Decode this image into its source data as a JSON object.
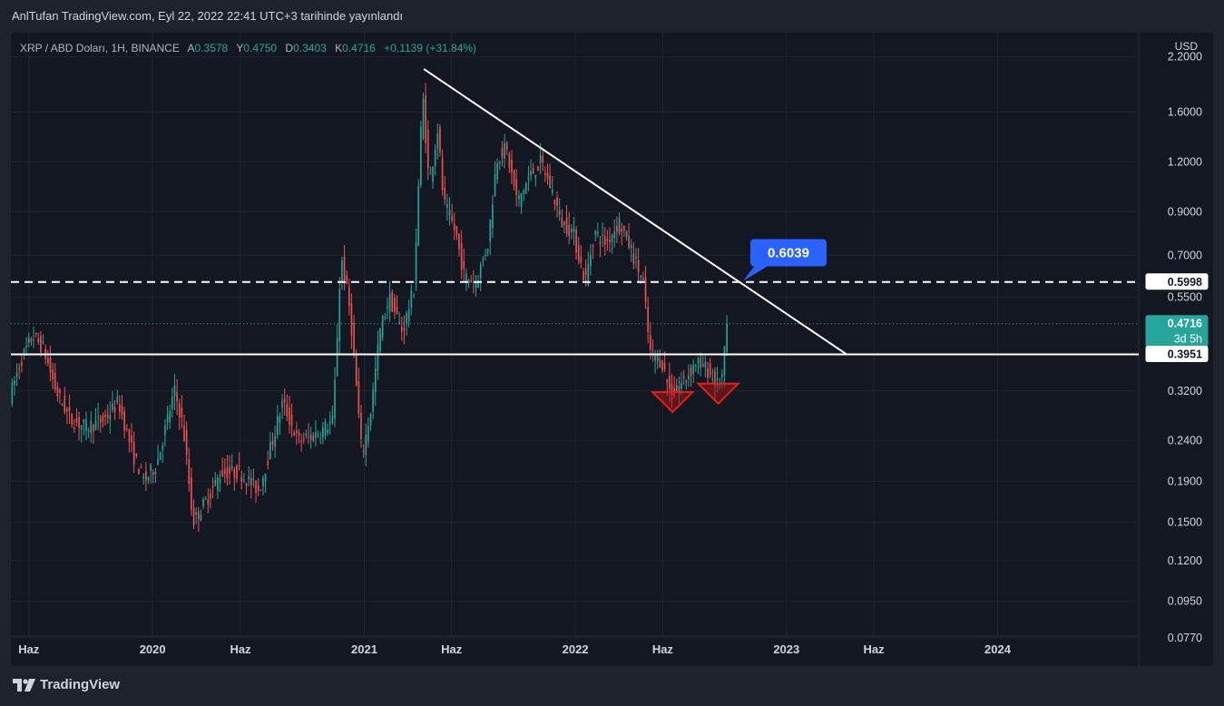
{
  "header": {
    "published_text": "AnlTufan TradingView.com, Eyl 22, 2022 22:41 UTC+3 tarihinde yayınlandı"
  },
  "legend": {
    "symbol": "XRP / ABD Doları, 1H, BINANCE",
    "open_label": "A",
    "open": "0.3578",
    "high_label": "Y",
    "high": "0.4750",
    "low_label": "D",
    "low": "0.3403",
    "close_label": "K",
    "close": "0.4716",
    "change": "+0.1139 (+31.84%)"
  },
  "price_axis": {
    "currency": "USD",
    "tick_labels": [
      "2.2000",
      "1.6000",
      "1.2000",
      "0.9000",
      "0.7000",
      "0.5500",
      "0.3200",
      "0.2400",
      "0.1900",
      "0.1500",
      "0.1200",
      "0.0950",
      "0.0770"
    ]
  },
  "time_axis": {
    "labels": [
      "Haz",
      "2020",
      "Haz",
      "2021",
      "Haz",
      "2022",
      "Haz",
      "2023",
      "Haz",
      "2024"
    ]
  },
  "badges": {
    "level_high": "0.5998",
    "current_price": "0.4716",
    "countdown": "3d 5h",
    "level_low": "0.3951",
    "callout": "0.6039"
  },
  "colors": {
    "up": "#26a69a",
    "down": "#ef5350",
    "background": "#131722",
    "callout": "#2962ff",
    "marker": "#e41e1e"
  },
  "brand": {
    "name": "TradingView"
  },
  "chart_data": {
    "type": "candlestick",
    "title": "XRP / ABD Doları, 1H, BINANCE",
    "y_scale": "log",
    "ylim": [
      0.07,
      2.4
    ],
    "xlim": [
      "2019-05-01",
      "2024-09-01"
    ],
    "y_ticks": [
      2.2,
      1.6,
      1.2,
      0.9,
      0.7,
      0.55,
      0.32,
      0.24,
      0.19,
      0.15,
      0.12,
      0.095,
      0.077
    ],
    "x_ticks": [
      "2019-06-01",
      "2020-01-01",
      "2020-06-01",
      "2021-01-01",
      "2021-06-01",
      "2022-01-01",
      "2022-06-01",
      "2023-01-01",
      "2023-06-01",
      "2024-01-01"
    ],
    "price_path": [
      [
        "2019-05-01",
        0.31
      ],
      [
        "2019-05-20",
        0.38
      ],
      [
        "2019-06-10",
        0.44
      ],
      [
        "2019-06-28",
        0.41
      ],
      [
        "2019-07-20",
        0.32
      ],
      [
        "2019-08-15",
        0.27
      ],
      [
        "2019-09-10",
        0.26
      ],
      [
        "2019-10-10",
        0.27
      ],
      [
        "2019-11-05",
        0.3
      ],
      [
        "2019-12-01",
        0.22
      ],
      [
        "2019-12-20",
        0.19
      ],
      [
        "2020-01-10",
        0.21
      ],
      [
        "2020-02-10",
        0.32
      ],
      [
        "2020-02-25",
        0.26
      ],
      [
        "2020-03-13",
        0.15
      ],
      [
        "2020-04-05",
        0.17
      ],
      [
        "2020-05-01",
        0.2
      ],
      [
        "2020-06-01",
        0.2
      ],
      [
        "2020-07-05",
        0.18
      ],
      [
        "2020-07-25",
        0.23
      ],
      [
        "2020-08-15",
        0.3
      ],
      [
        "2020-09-10",
        0.24
      ],
      [
        "2020-10-15",
        0.25
      ],
      [
        "2020-11-10",
        0.27
      ],
      [
        "2020-11-24",
        0.7
      ],
      [
        "2020-12-10",
        0.5
      ],
      [
        "2020-12-30",
        0.22
      ],
      [
        "2021-01-15",
        0.29
      ],
      [
        "2021-01-30",
        0.45
      ],
      [
        "2021-02-15",
        0.55
      ],
      [
        "2021-03-10",
        0.45
      ],
      [
        "2021-03-30",
        0.58
      ],
      [
        "2021-04-14",
        1.8
      ],
      [
        "2021-04-25",
        1.05
      ],
      [
        "2021-05-10",
        1.45
      ],
      [
        "2021-05-20",
        0.95
      ],
      [
        "2021-06-10",
        0.8
      ],
      [
        "2021-06-25",
        0.62
      ],
      [
        "2021-07-15",
        0.6
      ],
      [
        "2021-08-05",
        0.75
      ],
      [
        "2021-08-20",
        1.22
      ],
      [
        "2021-09-05",
        1.3
      ],
      [
        "2021-09-25",
        0.95
      ],
      [
        "2021-10-15",
        1.1
      ],
      [
        "2021-11-05",
        1.2
      ],
      [
        "2021-11-25",
        1.0
      ],
      [
        "2021-12-10",
        0.85
      ],
      [
        "2021-12-30",
        0.8
      ],
      [
        "2022-01-20",
        0.6
      ],
      [
        "2022-02-05",
        0.8
      ],
      [
        "2022-02-25",
        0.75
      ],
      [
        "2022-03-20",
        0.85
      ],
      [
        "2022-04-10",
        0.72
      ],
      [
        "2022-04-30",
        0.6
      ],
      [
        "2022-05-12",
        0.4
      ],
      [
        "2022-06-01",
        0.38
      ],
      [
        "2022-06-18",
        0.31
      ],
      [
        "2022-07-10",
        0.34
      ],
      [
        "2022-08-01",
        0.38
      ],
      [
        "2022-08-20",
        0.36
      ],
      [
        "2022-09-05",
        0.33
      ],
      [
        "2022-09-15",
        0.35
      ],
      [
        "2022-09-22",
        0.4716
      ]
    ],
    "trendline": {
      "from": [
        "2021-04-14",
        2.05
      ],
      "to": [
        "2023-04-15",
        0.3951
      ]
    },
    "levels": [
      {
        "price": 0.5998,
        "style": "dashed"
      },
      {
        "price": 0.3951,
        "style": "solid"
      }
    ],
    "current_price": 0.4716,
    "callout": {
      "date": "2022-10-18",
      "price": 0.6039
    },
    "markers": [
      {
        "date": "2022-06-18",
        "price": 0.3,
        "shape": "triangle-down"
      },
      {
        "date": "2022-09-05",
        "price": 0.315,
        "shape": "triangle-down"
      }
    ],
    "grid": true
  }
}
